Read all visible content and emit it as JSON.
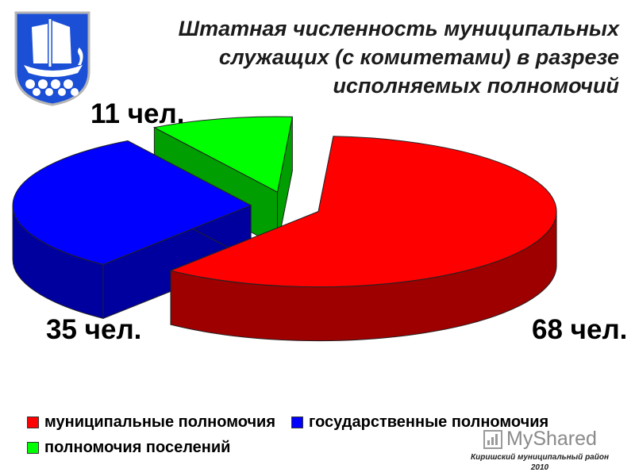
{
  "title": {
    "line1": "Штатная численность муниципальных",
    "line2": "служащих (с комитетами) в разрезе",
    "line3": "исполняемых полномочий"
  },
  "chart_data": {
    "type": "pie",
    "style": "3d-exploded",
    "series": [
      {
        "name": "муниципальные полномочия",
        "value": 68,
        "label": "68 чел.",
        "color": "#ff0000"
      },
      {
        "name": "государственные полномочия",
        "value": 35,
        "label": "35 чел.",
        "color": "#0000ff"
      },
      {
        "name": "полномочия поселений",
        "value": 11,
        "label": "11 чел.",
        "color": "#00ff00"
      }
    ],
    "legend_position": "bottom"
  },
  "watermark": {
    "text": "MyShared",
    "icon": "myshared-logo-icon"
  },
  "footer": {
    "line1": "Киришский муниципальный район",
    "line2": "2010"
  },
  "emblem": {
    "icon": "city-coat-of-arms-ship-icon",
    "colors": {
      "field": "#1a4fd6",
      "ship": "#ffffff",
      "border": "#c8c8c8"
    }
  }
}
